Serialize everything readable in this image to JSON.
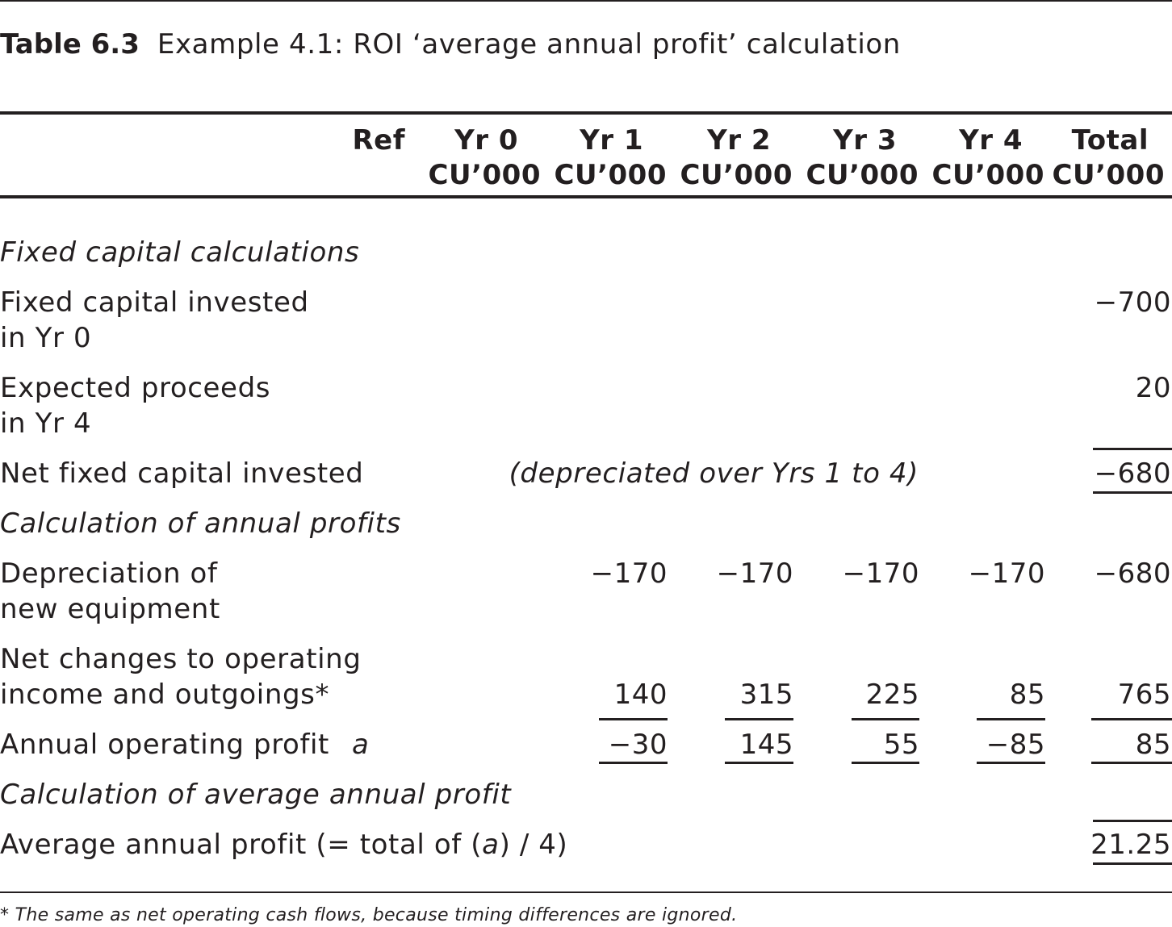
{
  "title": {
    "label": "Table 6.3",
    "text": "Example 4.1: ROI ‘average annual profit’ calculation"
  },
  "header": {
    "ref": "Ref",
    "columns": [
      {
        "year": "Yr 0",
        "unit": "CU’000"
      },
      {
        "year": "Yr 1",
        "unit": "CU’000"
      },
      {
        "year": "Yr 2",
        "unit": "CU’000"
      },
      {
        "year": "Yr 3",
        "unit": "CU’000"
      },
      {
        "year": "Yr 4",
        "unit": "CU’000"
      },
      {
        "year": "Total",
        "unit": "CU’000"
      }
    ]
  },
  "sections": {
    "fixed_capital": "Fixed capital calculations",
    "annual_profits": "Calculation of annual profits",
    "average_profit": "Calculation of average annual profit"
  },
  "rows": {
    "fixed_invested": {
      "label_1": "Fixed capital invested",
      "label_2": "in Yr 0",
      "total": "−700"
    },
    "proceeds": {
      "label_1": "Expected proceeds",
      "label_2": "in Yr 4",
      "total": "20"
    },
    "net_fixed": {
      "label": "Net fixed capital invested",
      "note": "(depreciated over Yrs 1 to 4)",
      "total": "−680"
    },
    "depreciation": {
      "label_1": "Depreciation of",
      "label_2": "new equipment",
      "yr1": "−170",
      "yr2": "−170",
      "yr3": "−170",
      "yr4": "−170",
      "total": "−680"
    },
    "net_changes": {
      "label_1": "Net changes to operating",
      "label_2": "income and outgoings*",
      "yr1": "140",
      "yr2": "315",
      "yr3": "225",
      "yr4": "85",
      "total": "765"
    },
    "operating_profit": {
      "label": "Annual operating profit",
      "ref": "a",
      "yr1": "−30",
      "yr2": "145",
      "yr3": "55",
      "yr4": "−85",
      "total": "85"
    },
    "average_profit": {
      "label_before": "Average annual profit (= total of (",
      "ref": "a",
      "label_after": ") / 4)",
      "total": "21.25"
    }
  },
  "footnote": "* The same as net operating cash flows, because timing differences are ignored."
}
